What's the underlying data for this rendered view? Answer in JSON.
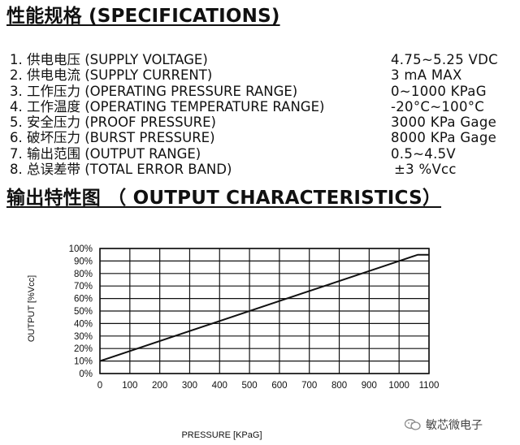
{
  "spec_title": "性能规格 (SPECIFICATIONS)",
  "specs": [
    {
      "label": "1. 供电电压 (SUPPLY VOLTAGE)",
      "value": "4.75~5.25  VDC"
    },
    {
      "label": "2. 供电电流 (SUPPLY CURRENT)",
      "value": "3 mA MAX"
    },
    {
      "label": "3. 工作压力 (OPERATING PRESSURE RANGE)",
      "value": "0~1000 KPaG"
    },
    {
      "label": "4. 工作温度 (OPERATING TEMPERATURE RANGE)",
      "value": "-20°C~100°C"
    },
    {
      "label": "5. 安全压力 (PROOF PRESSURE)",
      "value": "3000 KPa Gage"
    },
    {
      "label": "6. 破坏压力 (BURST PRESSURE)",
      "value": "8000 KPa Gage"
    },
    {
      "label": "7. 输出范围 (OUTPUT RANGE)",
      "value": "0.5~4.5V"
    },
    {
      "label": "8. 总误差带 (TOTAL ERROR BAND)",
      "value": "±3 %Vcc"
    }
  ],
  "chart_title": "输出特性图 （ OUTPUT CHARACTERISTICS）",
  "watermark": "敏芯微电子",
  "chart_data": {
    "type": "line",
    "title": "",
    "xlabel": "PRESSURE [KPaG]",
    "ylabel": "OUTPUT [%Vcc]",
    "xlim": [
      0,
      1100
    ],
    "ylim": [
      0,
      100
    ],
    "x_ticks": [
      0,
      100,
      200,
      300,
      400,
      500,
      600,
      700,
      800,
      900,
      1000,
      1100
    ],
    "y_ticks": [
      "0%",
      "10%",
      "20%",
      "30%",
      "40%",
      "50%",
      "60%",
      "70%",
      "80%",
      "90%",
      "100%"
    ],
    "grid": true,
    "series": [
      {
        "x": [
          0,
          1000,
          1062.5,
          1100
        ],
        "y": [
          10,
          90,
          95,
          95
        ]
      }
    ]
  }
}
